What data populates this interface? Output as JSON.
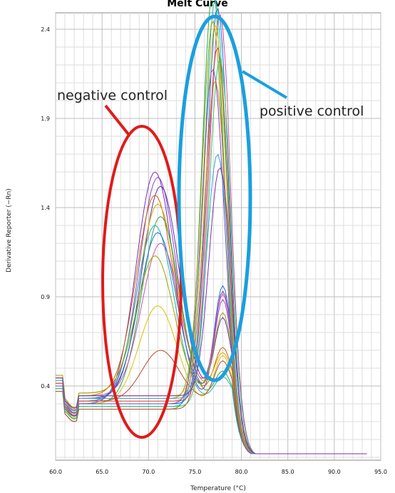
{
  "chart_data": {
    "type": "line",
    "title": "Melt Curve",
    "xlabel": "Temperature (°C)",
    "ylabel": "Derivative Reporter (−Rn)",
    "xlim": [
      60.0,
      95.0
    ],
    "ylim": [
      0.0,
      2.45
    ],
    "x_ticks": [
      "60.0",
      "65.0",
      "70.0",
      "75.0",
      "80.0",
      "85.0",
      "90.0",
      "95.0"
    ],
    "y_ticks": [
      "0.4",
      "0.9",
      "1.4",
      "1.9",
      "2.4"
    ],
    "grid": true,
    "annotations": [
      {
        "text": "negative control",
        "color": "#e01b1b"
      },
      {
        "text": "positive control",
        "color": "#1a9fe0"
      }
    ],
    "colors": {
      "negative_control": "#e01b1b",
      "positive_control": "#1a9fe0"
    },
    "curve_groups": [
      {
        "label": "negative control",
        "first_peak_x": 71.0,
        "first_peak_heights": [
          1.6,
          1.57,
          1.52,
          1.47,
          1.42,
          1.35,
          1.3,
          1.26,
          1.2,
          1.13,
          0.85,
          0.6
        ],
        "second_peak_x": 78.0,
        "second_peak_heights": [
          0.85,
          0.78,
          0.65,
          0.45,
          0.4,
          0.35,
          0.3
        ]
      },
      {
        "label": "positive control",
        "peak_x": 77.3,
        "peak_heights": [
          2.45,
          2.38,
          2.32,
          2.27,
          2.22,
          2.18,
          2.13,
          2.05,
          1.98,
          1.9,
          1.47,
          1.38
        ]
      }
    ]
  }
}
